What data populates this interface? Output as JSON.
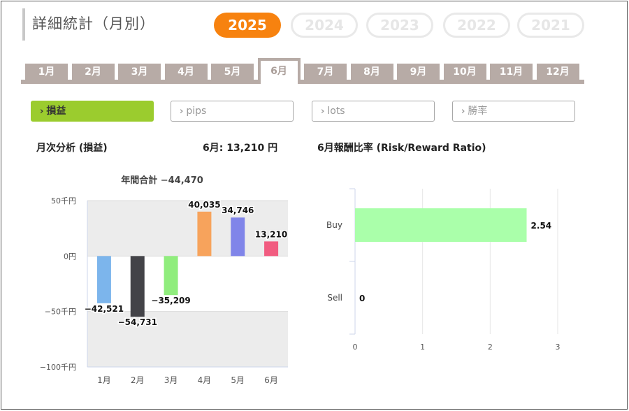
{
  "header": {
    "title": "詳細統計（月別）"
  },
  "years": [
    "2025",
    "2024",
    "2023",
    "2022",
    "2021"
  ],
  "selected_year": "2025",
  "months": [
    "1月",
    "2月",
    "3月",
    "4月",
    "5月",
    "6月",
    "7月",
    "8月",
    "9月",
    "10月",
    "11月",
    "12月"
  ],
  "selected_month": "6月",
  "filters": [
    {
      "label": "損益",
      "active": true
    },
    {
      "label": "pips",
      "active": false
    },
    {
      "label": "lots",
      "active": false
    },
    {
      "label": "勝率",
      "active": false
    }
  ],
  "monthly": {
    "heading": "月次分析 (損益)",
    "summary": "6月:  13,210 円",
    "annual_total": "年間合計 −44,470"
  },
  "rr": {
    "heading": "6月報酬比率 (Risk/Reward Ratio)"
  },
  "colors": {
    "accent": "#f7820f",
    "filter_active": "#9bcc2e",
    "tab": "#b7aba6"
  },
  "chart_data": [
    {
      "type": "bar",
      "categories": [
        "1月",
        "2月",
        "3月",
        "4月",
        "5月",
        "6月"
      ],
      "values": [
        -42521,
        -54731,
        -35209,
        40035,
        34746,
        13210
      ],
      "value_labels": [
        "−42,521",
        "−54,731",
        "−35,209",
        "40,035",
        "34,746",
        "13,210"
      ],
      "colors": [
        "#7cb5ec",
        "#434348",
        "#90ed7d",
        "#f7a35c",
        "#8085e9",
        "#f15c80"
      ],
      "ylim": [
        -100000,
        50000
      ],
      "yticks": [
        50000,
        0,
        -50000,
        -100000
      ],
      "ytick_labels": [
        "50千円",
        "0円",
        "−50千円",
        "−100千円"
      ],
      "title": "年間合計 −44,470"
    },
    {
      "type": "bar",
      "orientation": "horizontal",
      "categories": [
        "Buy",
        "Sell"
      ],
      "values": [
        2.54,
        0
      ],
      "value_labels": [
        "2.54",
        "0"
      ],
      "colors": [
        "#aaffaa",
        "#aaffaa"
      ],
      "xlim": [
        0,
        3
      ],
      "xticks": [
        "0",
        "1",
        "2",
        "3"
      ],
      "title": "6月報酬比率 (Risk/Reward Ratio)"
    }
  ]
}
